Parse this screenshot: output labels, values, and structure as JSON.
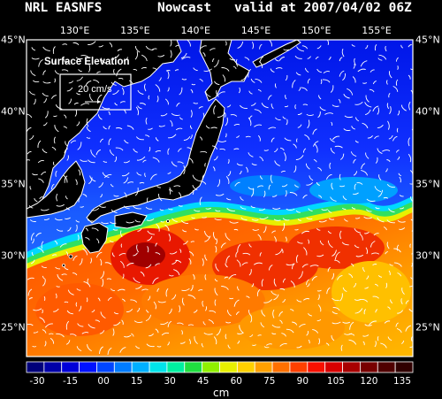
{
  "header": {
    "model": "NRL EASNFS",
    "mode": "Nowcast",
    "valid": "valid at 2007/04/02 06Z"
  },
  "map_extent": {
    "lon_min": 126,
    "lon_max": 158,
    "lat_min": 23,
    "lat_max": 45
  },
  "lon_ticks": [
    "130°E",
    "135°E",
    "140°E",
    "145°E",
    "150°E",
    "155°E"
  ],
  "lon_tick_values": [
    130,
    135,
    140,
    145,
    150,
    155
  ],
  "lat_ticks": [
    "45°N",
    "40°N",
    "35°N",
    "30°N",
    "25°N"
  ],
  "lat_tick_values": [
    45,
    40,
    35,
    30,
    25
  ],
  "legend": {
    "title": "Surface Elevation",
    "scale_label": "20 cm/s"
  },
  "colorbar": {
    "labels": [
      "-30",
      "-15",
      "00",
      "15",
      "30",
      "45",
      "60",
      "75",
      "90",
      "105",
      "120",
      "135"
    ],
    "unit": "cm",
    "colors": [
      "#00007a",
      "#0000a8",
      "#0000d8",
      "#0012ff",
      "#0046ff",
      "#007cff",
      "#00b0ff",
      "#00e4ea",
      "#00f0a0",
      "#20e040",
      "#90f000",
      "#e8f000",
      "#ffd000",
      "#ffa000",
      "#ff7000",
      "#ff4000",
      "#f81000",
      "#d80000",
      "#a80000",
      "#780000",
      "#500000",
      "#300000"
    ]
  },
  "colors": {
    "land": "#000000",
    "coast": "#ffffff",
    "arrows": "#ffffff"
  }
}
